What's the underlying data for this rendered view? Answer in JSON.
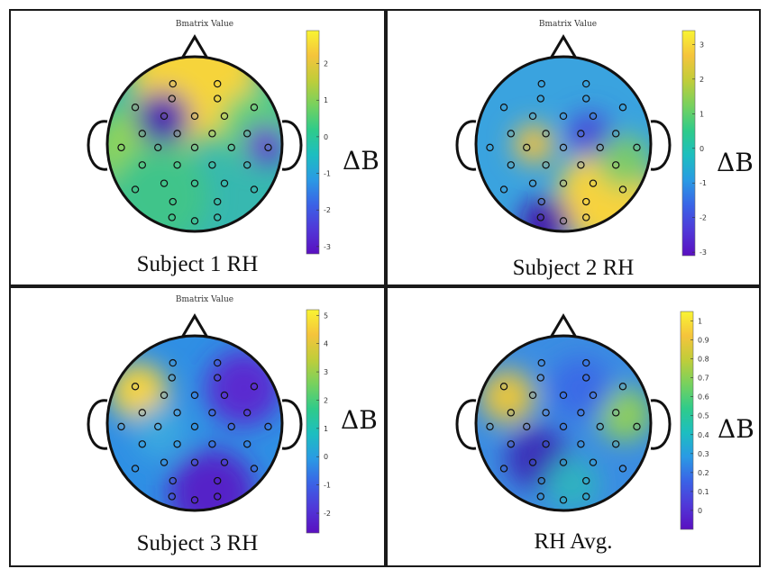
{
  "panels": [
    {
      "id": "p1",
      "subtitle": "Subject 1 RH",
      "fig_title": "Bmatrix Value",
      "cbar_label": "ΔB",
      "cbar_ticks": [
        "2",
        "1",
        "0",
        "-1",
        "-2",
        "-3"
      ],
      "range": [
        -3.2,
        2.9
      ],
      "blobs": [
        [
          0.5,
          0.12,
          "#f6d43a",
          70
        ],
        [
          0.2,
          0.55,
          "#8fd45a",
          55
        ],
        [
          0.85,
          0.4,
          "#5fd07a",
          40
        ],
        [
          0.32,
          0.35,
          "#4b1fb0",
          30
        ],
        [
          0.9,
          0.5,
          "#6a2ad0",
          22
        ],
        [
          0.3,
          0.8,
          "#3fc48a",
          55
        ]
      ],
      "base": "#37b8b0"
    },
    {
      "id": "p2",
      "subtitle": "Subject 2 RH",
      "fig_title": "Bmatrix Value",
      "cbar_label": "ΔB",
      "cbar_ticks": [
        "3",
        "2",
        "1",
        "0",
        "-1",
        "-2",
        "-3"
      ],
      "range": [
        -3.1,
        3.4
      ],
      "blobs": [
        [
          0.33,
          0.5,
          "#f4c13c",
          22
        ],
        [
          0.75,
          0.8,
          "#f7d33e",
          55
        ],
        [
          0.4,
          0.95,
          "#4510a8",
          28
        ],
        [
          0.65,
          0.45,
          "#4a4ad8",
          25
        ],
        [
          0.85,
          0.6,
          "#7acb6a",
          30
        ]
      ],
      "base": "#3aa3df"
    },
    {
      "id": "p3",
      "subtitle": "Subject 3 RH",
      "fig_title": "Bmatrix Value",
      "cbar_label": "ΔB",
      "cbar_ticks": [
        "5",
        "4",
        "3",
        "2",
        "1",
        "0",
        "-1",
        "-2"
      ],
      "range": [
        -2.7,
        5.2
      ],
      "blobs": [
        [
          0.18,
          0.32,
          "#f7d43e",
          32
        ],
        [
          0.78,
          0.3,
          "#5a2cd0",
          42
        ],
        [
          0.6,
          0.9,
          "#5520c8",
          48
        ],
        [
          0.3,
          0.55,
          "#3aa8e0",
          30
        ]
      ],
      "base": "#2f8fe4"
    },
    {
      "id": "p4",
      "subtitle": "RH Avg.",
      "fig_title": "",
      "cbar_label": "ΔB",
      "cbar_ticks": [
        "1",
        "0.9",
        "0.8",
        "0.7",
        "0.6",
        "0.5",
        "0.4",
        "0.3",
        "0.2",
        "0.1",
        "0"
      ],
      "range": [
        -0.1,
        1.05
      ],
      "blobs": [
        [
          0.18,
          0.35,
          "#e9c63e",
          30
        ],
        [
          0.85,
          0.45,
          "#8fcf5a",
          30
        ],
        [
          0.35,
          0.7,
          "#3a2fb8",
          35
        ],
        [
          0.6,
          0.3,
          "#3a6ae6",
          35
        ],
        [
          0.55,
          0.85,
          "#2fb2c0",
          30
        ]
      ],
      "base": "#3b8de2"
    }
  ],
  "colorbar_colors": [
    "#f9f432",
    "#f5c43c",
    "#c0cd3a",
    "#77d15e",
    "#2fcb8a",
    "#1dbec0",
    "#2a9ae4",
    "#3a63e6",
    "#5038d8",
    "#5a0fc0"
  ]
}
